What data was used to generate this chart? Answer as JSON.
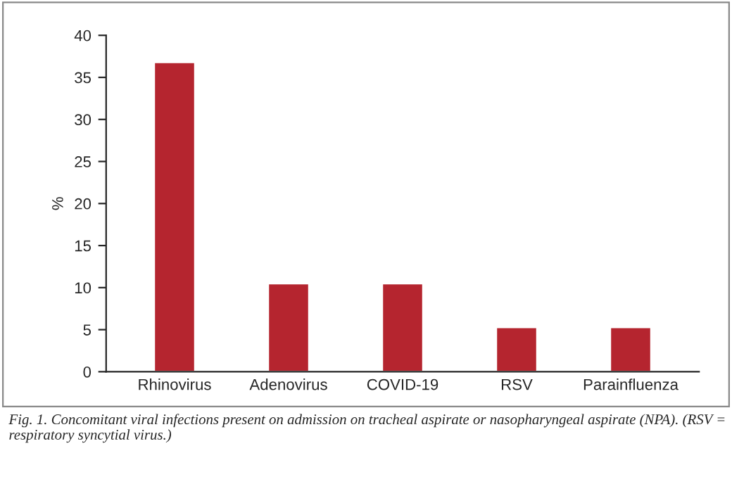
{
  "chart_data": {
    "type": "bar",
    "ylabel": "%",
    "categories": [
      "Rhinovirus",
      "Adenovirus",
      "COVID-19",
      "RSV",
      "Parainfluenza"
    ],
    "values": [
      36.8,
      10.5,
      10.5,
      5.3,
      5.3
    ],
    "color": "#b5252f",
    "ylim": [
      0,
      40
    ],
    "yticks": [
      0,
      5,
      10,
      15,
      20,
      25,
      30,
      35,
      40
    ],
    "grid": false,
    "annotations": [
      "Fig. 1. Concomitant viral infections present on admission on tracheal aspirate or nasopharyngeal aspirate (NPA). (RSV = respiratory syncytial virus.)"
    ]
  }
}
